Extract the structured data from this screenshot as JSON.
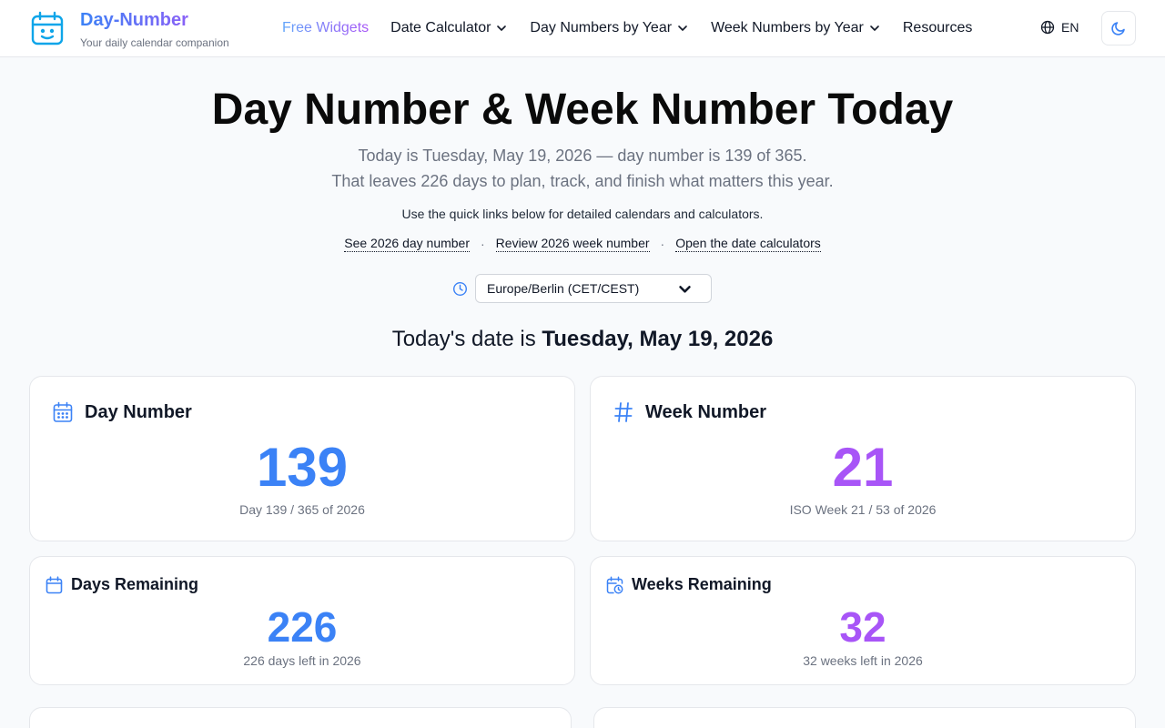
{
  "header": {
    "brand_title": "Day-Number",
    "brand_subtitle": "Your daily calendar companion",
    "logo_icon": "calendar-smile-icon",
    "nav": [
      {
        "label": "Free Widgets",
        "active": true,
        "dropdown": false
      },
      {
        "label": "Date Calculator",
        "dropdown": true
      },
      {
        "label": "Day Numbers by Year",
        "dropdown": true
      },
      {
        "label": "Week Numbers by Year",
        "dropdown": true
      },
      {
        "label": "Resources",
        "dropdown": false
      }
    ],
    "language": "EN",
    "language_icon": "globe-icon",
    "theme_icon": "moon-icon"
  },
  "hero": {
    "title": "Day Number & Week Number Today",
    "line1": "Today is Tuesday, May 19, 2026 — day number is 139 of 365.",
    "line2": "That leaves 226 days to plan, track, and finish what matters this year.",
    "note": "Use the quick links below for detailed calendars and calculators.",
    "links": [
      "See 2026 day number",
      "Review 2026 week number",
      "Open the date calculators"
    ],
    "separator": "·"
  },
  "timezone": {
    "icon": "clock-icon",
    "selected": "Europe/Berlin (CET/CEST)"
  },
  "today": {
    "prefix": "Today's date is",
    "date": "Tuesday, May 19, 2026"
  },
  "cards": {
    "day_number": {
      "title": "Day Number",
      "value": "139",
      "caption": "Day 139 / 365 of 2026",
      "icon": "calendar-grid-icon"
    },
    "week_number": {
      "title": "Week Number",
      "value": "21",
      "caption": "ISO Week 21 / 53 of 2026",
      "icon": "hash-icon"
    },
    "days_remaining": {
      "title": "Days Remaining",
      "value": "226",
      "caption": "226 days left in 2026",
      "icon": "calendar-icon"
    },
    "weeks_remaining": {
      "title": "Weeks Remaining",
      "value": "32",
      "caption": "32 weeks left in 2026",
      "icon": "calendar-clock-icon"
    }
  },
  "colors": {
    "accent_blue": "#3b82f6",
    "accent_purple": "#a855f7"
  }
}
